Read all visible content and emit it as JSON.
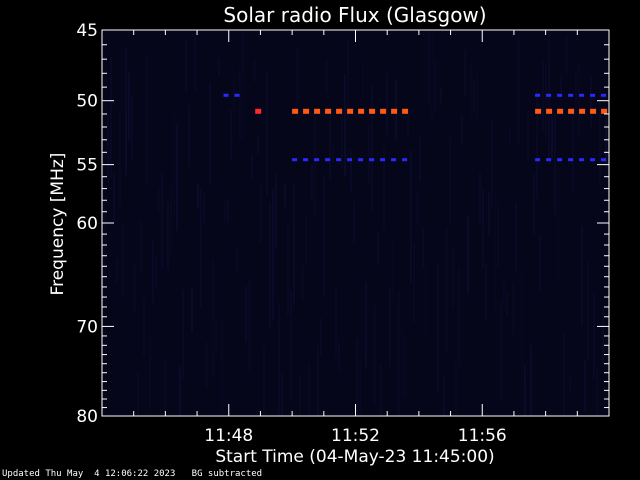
{
  "chart_data": {
    "type": "heatmap",
    "title": "Solar radio Flux (Glasgow)",
    "ylabel": "Frequency [MHz]",
    "xlabel": "Start Time (04-May-23 11:45:00)",
    "x_range_minutes": [
      "11:44",
      "12:00"
    ],
    "ylim": [
      45,
      80
    ],
    "y_scale": "log",
    "x_ticks": [
      "11:48",
      "11:52",
      "11:56"
    ],
    "y_ticks": [
      "45",
      "50",
      "55",
      "60",
      "70",
      "80"
    ],
    "background_color": "#06061a",
    "features": [
      {
        "kind": "bright-emission",
        "color": "#ff5a14",
        "freq_mhz": 50.8,
        "segments": [
          [
            "11:50:00",
            "11:53:40"
          ],
          [
            "11:57:40",
            "11:59:50"
          ]
        ]
      },
      {
        "kind": "bright-emission",
        "color": "#ff2a2a",
        "freq_mhz": 50.8,
        "segments": [
          [
            "11:48:50",
            "11:49:10"
          ]
        ]
      },
      {
        "kind": "weak-emission",
        "color": "#2a2aff",
        "freq_mhz": 54.6,
        "segments": [
          [
            "11:50:00",
            "11:53:40"
          ],
          [
            "11:57:40",
            "11:59:50"
          ]
        ]
      },
      {
        "kind": "weak-emission",
        "color": "#2a2aff",
        "freq_mhz": 49.6,
        "segments": [
          [
            "11:47:50",
            "11:48:20"
          ],
          [
            "11:57:40",
            "11:59:50"
          ]
        ]
      }
    ]
  },
  "footer": {
    "updated": "Updated Thu May  4 12:06:22 2023",
    "note": "BG subtracted"
  }
}
